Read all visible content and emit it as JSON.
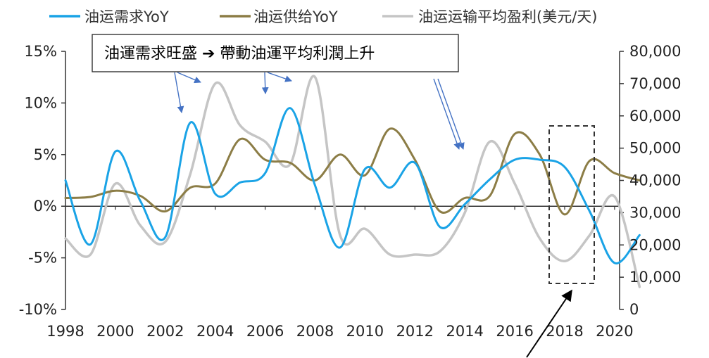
{
  "chart_data": {
    "type": "line",
    "title": "",
    "xlabel": "",
    "ylabel": "",
    "x": [
      1998,
      1999,
      2000,
      2001,
      2002,
      2003,
      2004,
      2005,
      2006,
      2007,
      2008,
      2009,
      2010,
      2011,
      2012,
      2013,
      2014,
      2015,
      2016,
      2017,
      2018,
      2019,
      2020,
      2021
    ],
    "x_ticks": [
      "1998",
      "2000",
      "2002",
      "2004",
      "2006",
      "2008",
      "2010",
      "2012",
      "2014",
      "2016",
      "2018",
      "2020"
    ],
    "y_left": {
      "range": [
        -10,
        15
      ],
      "ticks": [
        "-10%",
        "-5%",
        "0%",
        "5%",
        "10%",
        "15%"
      ]
    },
    "y_right": {
      "range": [
        0,
        80000
      ],
      "ticks": [
        "0",
        "10,000",
        "20,000",
        "30,000",
        "40,000",
        "50,000",
        "60,000",
        "70,000",
        "80,000"
      ]
    },
    "series": [
      {
        "name": "油运需求YoY",
        "axis": "left",
        "color": "#1aa3e6",
        "values": [
          2.5,
          -3.7,
          5.3,
          0.5,
          -3.0,
          8.1,
          1.2,
          2.3,
          3.2,
          9.5,
          2.0,
          -4.0,
          3.6,
          1.8,
          4.2,
          -2.0,
          0.2,
          2.6,
          4.5,
          4.5,
          3.8,
          -0.5,
          -5.5,
          -2.8
        ]
      },
      {
        "name": "油运供给YoY",
        "axis": "left",
        "color": "#8c7d46",
        "values": [
          0.8,
          0.9,
          1.5,
          1.0,
          -0.5,
          1.8,
          2.2,
          6.5,
          4.5,
          4.2,
          2.5,
          5.0,
          3.0,
          7.5,
          4.5,
          -0.5,
          0.8,
          1.0,
          7.0,
          5.0,
          -0.8,
          4.4,
          3.2,
          2.5
        ]
      },
      {
        "name": "油运运输平均盈利(美元/天)",
        "axis": "right",
        "color": "#c5c5c5",
        "values": [
          22000,
          17000,
          39000,
          26000,
          21000,
          42000,
          70000,
          57000,
          52000,
          45000,
          72000,
          23000,
          25000,
          17000,
          17000,
          18000,
          30000,
          52000,
          39000,
          22000,
          15000,
          23000,
          35000,
          7000
        ]
      }
    ],
    "annotations": [
      {
        "text": "油運需求旺盛  ➔  帶動油運平均利潤上升"
      }
    ]
  }
}
